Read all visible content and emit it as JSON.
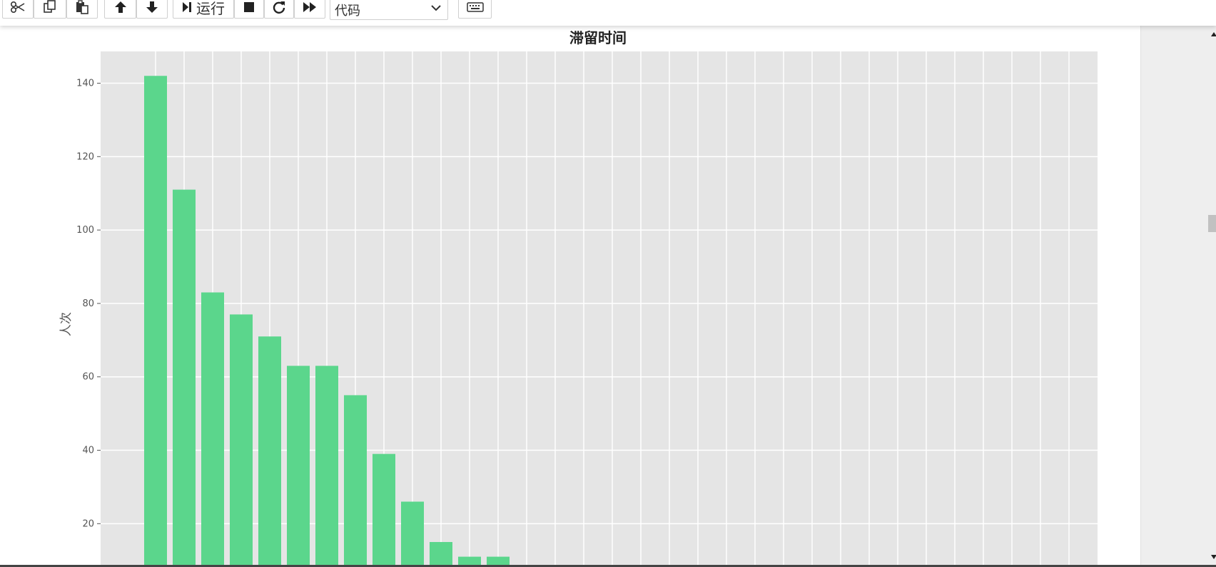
{
  "toolbar": {
    "cut_icon": "scissors-icon",
    "copy_icon": "copy-icon",
    "paste_icon": "paste-icon",
    "move_up_icon": "arrow-up-icon",
    "move_down_icon": "arrow-down-icon",
    "run_icon": "step-forward-icon",
    "run_label": "运行",
    "stop_icon": "stop-icon",
    "restart_icon": "restart-icon",
    "fast_forward_icon": "fast-forward-icon",
    "cell_type_value": "代码",
    "keyboard_icon": "keyboard-icon"
  },
  "colors": {
    "bar": "#5bd68c",
    "plot_bg": "#e5e5e5",
    "grid": "#ffffff"
  },
  "chart_data": {
    "type": "bar",
    "title": "滞留时间",
    "xlabel": "",
    "ylabel": "人次",
    "categories": [
      "",
      "",
      "",
      "",
      "",
      "",
      "",
      "",
      "",
      "",
      "",
      "",
      ""
    ],
    "values": [
      142,
      111,
      83,
      77,
      71,
      63,
      63,
      55,
      39,
      26,
      15,
      11,
      11
    ],
    "yticks": [
      20,
      40,
      60,
      80,
      100,
      120,
      140
    ],
    "visible_ylim": [
      8,
      149
    ],
    "grid": true
  }
}
